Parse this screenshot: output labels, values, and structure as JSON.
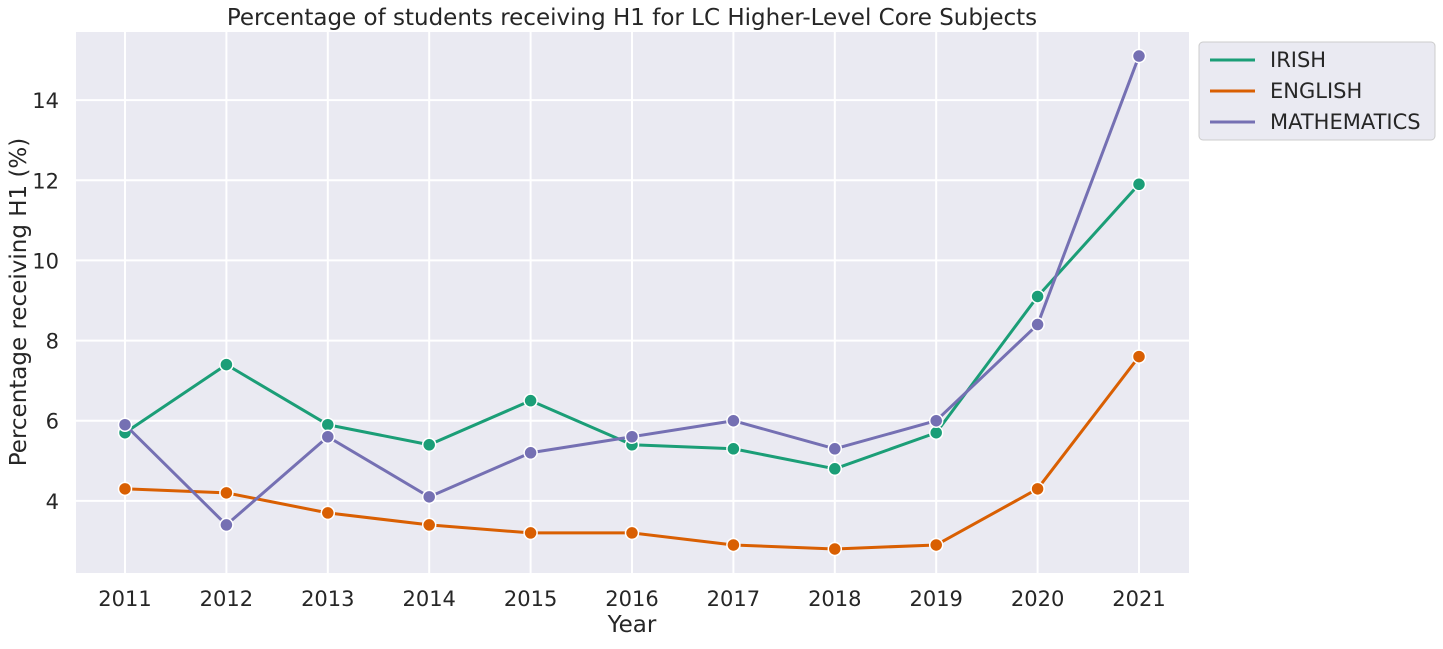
{
  "chart_data": {
    "type": "line",
    "title": "Percentage of students receiving H1 for LC Higher-Level Core Subjects",
    "xlabel": "Year",
    "ylabel": "Percentage receiving H1 (%)",
    "categories": [
      "2011",
      "2012",
      "2013",
      "2014",
      "2015",
      "2016",
      "2017",
      "2018",
      "2019",
      "2020",
      "2021"
    ],
    "yticks": [
      "4",
      "6",
      "8",
      "10",
      "12",
      "14"
    ],
    "ylim": [
      2.2,
      15.7
    ],
    "grid": true,
    "legend_position": "outside-top-right",
    "background_color": "#eaeaf2",
    "series": [
      {
        "name": "IRISH",
        "color": "#1b9e77",
        "values": [
          5.7,
          7.4,
          5.9,
          5.4,
          6.5,
          5.4,
          5.3,
          4.8,
          5.7,
          9.1,
          11.9
        ]
      },
      {
        "name": "ENGLISH",
        "color": "#d95f02",
        "values": [
          4.3,
          4.2,
          3.7,
          3.4,
          3.2,
          3.2,
          2.9,
          2.8,
          2.9,
          4.3,
          7.6
        ]
      },
      {
        "name": "MATHEMATICS",
        "color": "#7570b3",
        "values": [
          5.9,
          3.4,
          5.6,
          4.1,
          5.2,
          5.6,
          6.0,
          5.3,
          6.0,
          8.4,
          15.1
        ]
      }
    ]
  }
}
